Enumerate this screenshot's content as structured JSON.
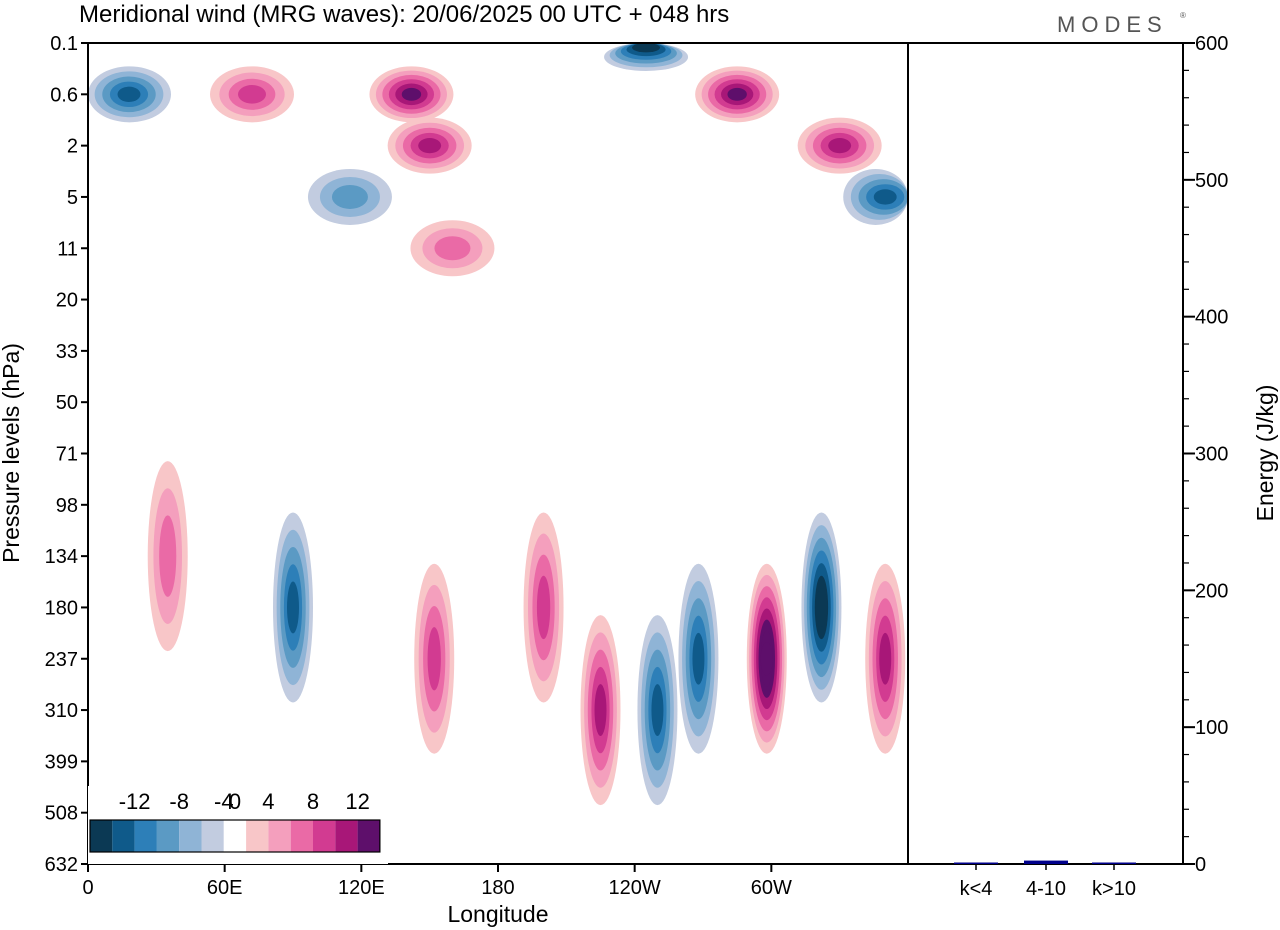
{
  "chart_data": {
    "type": "heatmap",
    "title": "Meridional wind (MRG waves):  20/06/2025  00 UTC  + 048 hrs",
    "brand": "MODES",
    "xlabel": "Longitude",
    "ylabel": "Pressure levels (hPa)",
    "x_ticks": [
      "0",
      "60E",
      "120E",
      "180",
      "120W",
      "60W"
    ],
    "x_tick_degrees": [
      0,
      60,
      120,
      180,
      240,
      300
    ],
    "x_range_degrees": [
      0,
      360
    ],
    "y_ticks": [
      "0.1",
      "0.6",
      "2",
      "5",
      "11",
      "20",
      "33",
      "50",
      "71",
      "98",
      "134",
      "180",
      "237",
      "310",
      "399",
      "508",
      "632"
    ],
    "colorbar": {
      "tick_labels": [
        "-12",
        "-8",
        "-4",
        "0",
        "4",
        "8",
        "12"
      ],
      "tick_values": [
        -12,
        -8,
        -4,
        0,
        4,
        8,
        12
      ],
      "levels": [
        -14,
        -12,
        -10,
        -8,
        -6,
        -4,
        -2,
        2,
        4,
        6,
        8,
        10,
        12,
        14
      ],
      "colors": [
        "#0b3954",
        "#0f5a8a",
        "#2d7fb8",
        "#5b9ac4",
        "#8fb4d6",
        "#c2cce0",
        "#ffffff",
        "#f8c6c8",
        "#f49fbd",
        "#ea6aa6",
        "#d23b91",
        "#a81778",
        "#5e0f6b"
      ]
    },
    "features": [
      {
        "lon": 72,
        "level": "0.6",
        "value": 8
      },
      {
        "lon": 142,
        "level": "0.6",
        "value": 12
      },
      {
        "lon": 245,
        "level": "0.1",
        "value": -14
      },
      {
        "lon": 285,
        "level": "0.6",
        "value": 12
      },
      {
        "lon": 18,
        "level": "0.6",
        "value": -10
      },
      {
        "lon": 330,
        "level": "2",
        "value": 10
      },
      {
        "lon": 350,
        "level": "5",
        "value": -10
      },
      {
        "lon": 150,
        "level": "2",
        "value": 10
      },
      {
        "lon": 115,
        "level": "5",
        "value": -6
      },
      {
        "lon": 160,
        "level": "11",
        "value": 6
      },
      {
        "lon": 35,
        "level": "134",
        "value": 6
      },
      {
        "lon": 90,
        "level": "180",
        "value": -10
      },
      {
        "lon": 152,
        "level": "237",
        "value": 8
      },
      {
        "lon": 200,
        "level": "180",
        "value": 8
      },
      {
        "lon": 225,
        "level": "310",
        "value": 10
      },
      {
        "lon": 250,
        "level": "310",
        "value": -10
      },
      {
        "lon": 268,
        "level": "237",
        "value": -10
      },
      {
        "lon": 298,
        "level": "237",
        "value": 16
      },
      {
        "lon": 322,
        "level": "180",
        "value": -14
      },
      {
        "lon": 350,
        "level": "237",
        "value": 10
      }
    ]
  },
  "energy_panel": {
    "ylabel": "Energy (J/kg)",
    "ylim": [
      0,
      600
    ],
    "y_ticks": [
      "0",
      "100",
      "200",
      "300",
      "400",
      "500",
      "600"
    ],
    "categories": [
      "k<4",
      "4-10",
      "k>10"
    ],
    "values": [
      0.5,
      2.5,
      0.2
    ],
    "bar_color": "#00008b"
  }
}
